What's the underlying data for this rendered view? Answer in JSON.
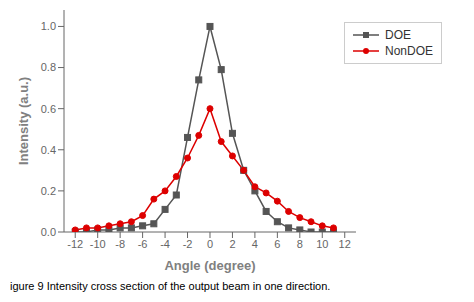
{
  "chart_data": {
    "type": "line",
    "xlabel": "Angle (degree)",
    "ylabel": "Intensity (a.u.)",
    "caption": "igure 9 Intensity cross section of the output beam in one direction.",
    "x": [
      -12,
      -11,
      -10,
      -9,
      -8,
      -7,
      -6,
      -5,
      -4,
      -3,
      -2,
      -1,
      0,
      1,
      2,
      3,
      4,
      5,
      6,
      7,
      8,
      9,
      10,
      11
    ],
    "series": [
      {
        "name": "DOE",
        "color": "#555555",
        "marker": "square",
        "values": [
          0.0,
          0.0,
          0.01,
          0.01,
          0.02,
          0.02,
          0.03,
          0.04,
          0.11,
          0.18,
          0.46,
          0.74,
          1.0,
          0.79,
          0.48,
          0.3,
          0.2,
          0.1,
          0.05,
          0.02,
          0.01,
          0.0,
          0.0,
          0.0
        ]
      },
      {
        "name": "NonDOE",
        "color": "#dd0000",
        "marker": "circle",
        "values": [
          0.01,
          0.02,
          0.02,
          0.03,
          0.04,
          0.05,
          0.08,
          0.16,
          0.2,
          0.27,
          0.36,
          0.47,
          0.6,
          0.44,
          0.37,
          0.3,
          0.22,
          0.19,
          0.15,
          0.1,
          0.07,
          0.05,
          0.03,
          0.02
        ]
      }
    ],
    "xlim": [
      -13,
      13
    ],
    "ylim": [
      0.0,
      1.08
    ],
    "xticks": [
      -12,
      -10,
      -8,
      -6,
      -4,
      -2,
      0,
      2,
      4,
      6,
      8,
      10,
      12
    ],
    "yticks": [
      {
        "value": 0,
        "label": "0.0"
      },
      0.2,
      0.4,
      0.6,
      0.8,
      {
        "value": 1,
        "label": "1.0"
      }
    ],
    "legend": "upper right",
    "grid": false
  }
}
